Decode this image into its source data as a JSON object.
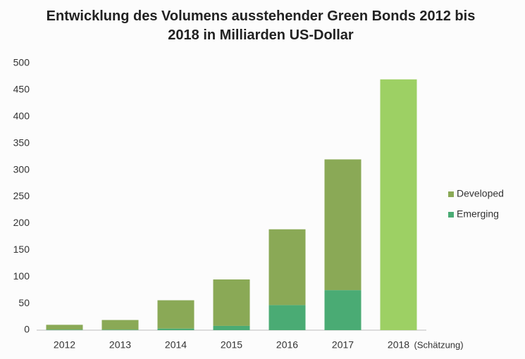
{
  "chart_data": {
    "type": "stacked_bar",
    "title": "Entwicklung des Volumens ausstehender Green Bonds 2012 bis 2018 in Milliarden US-Dollar",
    "categories": [
      "2012",
      "2013",
      "2014",
      "2015",
      "2016",
      "2017",
      "2018"
    ],
    "annotation": "(Schätzung)",
    "series": [
      {
        "name": "Emerging",
        "color": "#4aab74",
        "values": [
          1,
          1,
          3,
          8,
          47,
          75,
          null
        ]
      },
      {
        "name": "Developed",
        "color": "#8aa956",
        "values": [
          9,
          18,
          53,
          87,
          142,
          245,
          470
        ],
        "point_colors": [
          null,
          null,
          null,
          null,
          null,
          null,
          "#9dd064"
        ]
      }
    ],
    "ylim": [
      0,
      500
    ],
    "yticks": [
      0,
      50,
      100,
      150,
      200,
      250,
      300,
      350,
      400,
      450,
      500
    ],
    "grid": false,
    "legend": "right"
  }
}
